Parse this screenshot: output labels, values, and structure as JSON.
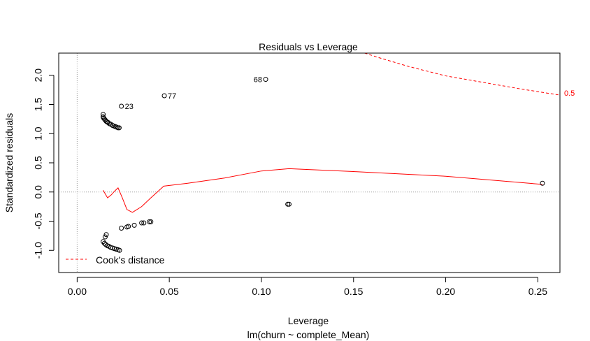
{
  "chart_data": {
    "type": "scatter",
    "title": "Residuals vs Leverage",
    "xlabel": "Leverage",
    "subtitle": "lm(churn ~ complete_Mean)",
    "ylabel": "Standardized residuals",
    "xlim": [
      -0.01,
      0.262
    ],
    "ylim": [
      -1.38,
      2.38
    ],
    "x_ticks": [
      0.0,
      0.05,
      0.1,
      0.15,
      0.2,
      0.25
    ],
    "x_tick_labels": [
      "0.00",
      "0.05",
      "0.10",
      "0.15",
      "0.20",
      "0.25"
    ],
    "y_ticks": [
      -1.0,
      -0.5,
      0.0,
      0.5,
      1.0,
      1.5,
      2.0
    ],
    "y_tick_labels": [
      "-1.0",
      "-0.5",
      "0.0",
      "0.5",
      "1.0",
      "1.5",
      "2.0"
    ],
    "points": [
      {
        "x": 0.0141,
        "y": 1.33
      },
      {
        "x": 0.0141,
        "y": 1.29
      },
      {
        "x": 0.0143,
        "y": 1.27
      },
      {
        "x": 0.0148,
        "y": 1.25
      },
      {
        "x": 0.0153,
        "y": 1.23
      },
      {
        "x": 0.0158,
        "y": 1.21
      },
      {
        "x": 0.0163,
        "y": 1.2
      },
      {
        "x": 0.0168,
        "y": 1.19
      },
      {
        "x": 0.0175,
        "y": 1.17
      },
      {
        "x": 0.0183,
        "y": 1.16
      },
      {
        "x": 0.0192,
        "y": 1.14
      },
      {
        "x": 0.02,
        "y": 1.13
      },
      {
        "x": 0.0208,
        "y": 1.12
      },
      {
        "x": 0.0215,
        "y": 1.11
      },
      {
        "x": 0.0222,
        "y": 1.1
      },
      {
        "x": 0.0228,
        "y": 1.1
      },
      {
        "x": 0.024,
        "y": 1.47,
        "label": "23"
      },
      {
        "x": 0.0473,
        "y": 1.65,
        "label": "77"
      },
      {
        "x": 0.1023,
        "y": 1.93,
        "label": "68"
      },
      {
        "x": 0.2525,
        "y": 0.15
      },
      {
        "x": 0.115,
        "y": -0.21
      },
      {
        "x": 0.1143,
        "y": -0.21
      },
      {
        "x": 0.04,
        "y": -0.51
      },
      {
        "x": 0.0392,
        "y": -0.51
      },
      {
        "x": 0.0362,
        "y": -0.53
      },
      {
        "x": 0.035,
        "y": -0.53
      },
      {
        "x": 0.031,
        "y": -0.57
      },
      {
        "x": 0.0278,
        "y": -0.59
      },
      {
        "x": 0.027,
        "y": -0.6
      },
      {
        "x": 0.024,
        "y": -0.62
      },
      {
        "x": 0.0158,
        "y": -0.73
      },
      {
        "x": 0.0152,
        "y": -0.77
      },
      {
        "x": 0.0141,
        "y": -0.85
      },
      {
        "x": 0.0148,
        "y": -0.88
      },
      {
        "x": 0.0155,
        "y": -0.9
      },
      {
        "x": 0.0163,
        "y": -0.92
      },
      {
        "x": 0.0172,
        "y": -0.93
      },
      {
        "x": 0.0182,
        "y": -0.95
      },
      {
        "x": 0.0192,
        "y": -0.96
      },
      {
        "x": 0.0202,
        "y": -0.97
      },
      {
        "x": 0.0212,
        "y": -0.98
      },
      {
        "x": 0.0222,
        "y": -0.99
      },
      {
        "x": 0.023,
        "y": -1.0
      }
    ],
    "smoother": [
      {
        "x": 0.0141,
        "y": 0.03
      },
      {
        "x": 0.0165,
        "y": -0.1
      },
      {
        "x": 0.0185,
        "y": -0.05
      },
      {
        "x": 0.0205,
        "y": 0.02
      },
      {
        "x": 0.0222,
        "y": 0.07
      },
      {
        "x": 0.0245,
        "y": -0.1
      },
      {
        "x": 0.027,
        "y": -0.3
      },
      {
        "x": 0.03,
        "y": -0.35
      },
      {
        "x": 0.035,
        "y": -0.25
      },
      {
        "x": 0.04,
        "y": -0.1
      },
      {
        "x": 0.047,
        "y": 0.1
      },
      {
        "x": 0.06,
        "y": 0.15
      },
      {
        "x": 0.08,
        "y": 0.24
      },
      {
        "x": 0.1,
        "y": 0.36
      },
      {
        "x": 0.115,
        "y": 0.4
      },
      {
        "x": 0.15,
        "y": 0.35
      },
      {
        "x": 0.2,
        "y": 0.27
      },
      {
        "x": 0.2525,
        "y": 0.13
      }
    ],
    "cooks_distance": {
      "level_label": "0.5",
      "curve": [
        {
          "x": 0.156,
          "y": 2.38
        },
        {
          "x": 0.165,
          "y": 2.29
        },
        {
          "x": 0.18,
          "y": 2.15
        },
        {
          "x": 0.2,
          "y": 1.99
        },
        {
          "x": 0.22,
          "y": 1.88
        },
        {
          "x": 0.24,
          "y": 1.77
        },
        {
          "x": 0.262,
          "y": 1.66
        }
      ]
    },
    "legend": {
      "label": "Cook's distance",
      "position": "bottom-left"
    },
    "colors": {
      "points": "#000000",
      "smoother": "#ff0000",
      "cooks": "#ff0000",
      "reference": "#a0a0a0"
    }
  }
}
